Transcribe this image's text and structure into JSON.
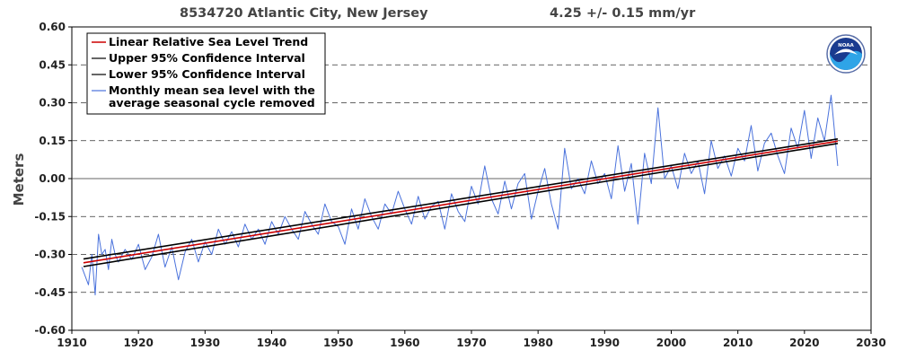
{
  "header": {
    "station": "8534720 Atlantic City, New Jersey",
    "trend_text": "4.25 +/-  0.15 mm/yr"
  },
  "logo": {
    "text": "NOAA",
    "icon": "noaa-logo-icon"
  },
  "colors": {
    "trend": "#cc0000",
    "ci": "#000000",
    "monthly": "#4a72dc",
    "grid": "#333333",
    "zero_line": "#333333"
  },
  "chart_data": {
    "type": "line",
    "title": "8534720 Atlantic City, New Jersey",
    "subtitle": "4.25 +/-  0.15 mm/yr",
    "xlabel": "",
    "ylabel": "Meters",
    "xlim": [
      1910,
      2030
    ],
    "ylim": [
      -0.6,
      0.6
    ],
    "x_ticks": [
      1910,
      1920,
      1930,
      1940,
      1950,
      1960,
      1970,
      1980,
      1990,
      2000,
      2010,
      2020,
      2030
    ],
    "y_ticks": [
      -0.6,
      -0.45,
      -0.3,
      -0.15,
      0.0,
      0.15,
      0.3,
      0.45,
      0.6
    ],
    "y_tick_labels": [
      "-0.60",
      "-0.45",
      "-0.30",
      "-0.15",
      "0.00",
      "0.15",
      "0.30",
      "0.45",
      "0.60"
    ],
    "grid": "horizontal dashed",
    "legend_position": "top-left",
    "trend_rate_mm_per_yr": 4.25,
    "trend_uncertainty_mm_per_yr": 0.15,
    "series": [
      {
        "name": "Linear Relative Sea Level Trend",
        "kind": "line",
        "x": [
          1911.75,
          2025.0
        ],
        "y": [
          -0.333,
          0.148
        ]
      },
      {
        "name": "Upper 95% Confidence Interval",
        "kind": "line",
        "x": [
          1911.75,
          2025.0
        ],
        "y": [
          -0.318,
          0.157
        ]
      },
      {
        "name": "Lower 95% Confidence Interval",
        "kind": "line",
        "x": [
          1911.75,
          2025.0
        ],
        "y": [
          -0.348,
          0.139
        ]
      },
      {
        "name": "Monthly mean sea level with the average seasonal cycle removed",
        "kind": "line",
        "x": [
          1911.5,
          1912.5,
          1913.0,
          1913.5,
          1914.0,
          1914.5,
          1915.0,
          1915.5,
          1916.0,
          1916.5,
          1917.0,
          1918.0,
          1919.0,
          1920.0,
          1921.0,
          1922.0,
          1923.0,
          1924.0,
          1925.0,
          1926.0,
          1927.0,
          1928.0,
          1929.0,
          1930.0,
          1931.0,
          1932.0,
          1933.0,
          1934.0,
          1935.0,
          1936.0,
          1937.0,
          1938.0,
          1939.0,
          1940.0,
          1941.0,
          1942.0,
          1943.0,
          1944.0,
          1945.0,
          1946.0,
          1947.0,
          1948.0,
          1949.0,
          1950.0,
          1951.0,
          1952.0,
          1953.0,
          1954.0,
          1955.0,
          1956.0,
          1957.0,
          1958.0,
          1959.0,
          1960.0,
          1961.0,
          1962.0,
          1963.0,
          1964.0,
          1965.0,
          1966.0,
          1967.0,
          1968.0,
          1969.0,
          1970.0,
          1971.0,
          1972.0,
          1973.0,
          1974.0,
          1975.0,
          1976.0,
          1977.0,
          1978.0,
          1979.0,
          1980.0,
          1981.0,
          1982.0,
          1983.0,
          1984.0,
          1985.0,
          1986.0,
          1987.0,
          1988.0,
          1989.0,
          1990.0,
          1991.0,
          1992.0,
          1993.0,
          1994.0,
          1995.0,
          1996.0,
          1997.0,
          1998.0,
          1999.0,
          2000.0,
          2001.0,
          2002.0,
          2003.0,
          2004.0,
          2005.0,
          2006.0,
          2007.0,
          2008.0,
          2009.0,
          2010.0,
          2011.0,
          2012.0,
          2013.0,
          2014.0,
          2015.0,
          2016.0,
          2017.0,
          2018.0,
          2019.0,
          2020.0,
          2021.0,
          2022.0,
          2023.0,
          2024.0,
          2025.0
        ],
        "y": [
          -0.35,
          -0.42,
          -0.3,
          -0.46,
          -0.22,
          -0.3,
          -0.28,
          -0.36,
          -0.24,
          -0.3,
          -0.33,
          -0.28,
          -0.32,
          -0.26,
          -0.36,
          -0.31,
          -0.22,
          -0.35,
          -0.27,
          -0.4,
          -0.29,
          -0.24,
          -0.33,
          -0.25,
          -0.3,
          -0.2,
          -0.26,
          -0.21,
          -0.27,
          -0.18,
          -0.24,
          -0.2,
          -0.26,
          -0.17,
          -0.22,
          -0.15,
          -0.2,
          -0.24,
          -0.13,
          -0.18,
          -0.22,
          -0.1,
          -0.17,
          -0.19,
          -0.26,
          -0.12,
          -0.2,
          -0.08,
          -0.15,
          -0.2,
          -0.1,
          -0.14,
          -0.05,
          -0.12,
          -0.18,
          -0.07,
          -0.16,
          -0.11,
          -0.09,
          -0.2,
          -0.06,
          -0.13,
          -0.17,
          -0.03,
          -0.1,
          0.05,
          -0.08,
          -0.14,
          -0.01,
          -0.12,
          -0.02,
          0.02,
          -0.16,
          -0.05,
          0.04,
          -0.1,
          -0.2,
          0.12,
          -0.04,
          0.0,
          -0.06,
          0.07,
          -0.02,
          0.02,
          -0.08,
          0.13,
          -0.05,
          0.06,
          -0.18,
          0.1,
          -0.02,
          0.28,
          0.0,
          0.05,
          -0.04,
          0.1,
          0.02,
          0.07,
          -0.06,
          0.15,
          0.04,
          0.09,
          0.01,
          0.12,
          0.07,
          0.21,
          0.03,
          0.14,
          0.18,
          0.09,
          0.02,
          0.2,
          0.12,
          0.27,
          0.08,
          0.24,
          0.15,
          0.33,
          0.05
        ]
      }
    ]
  }
}
